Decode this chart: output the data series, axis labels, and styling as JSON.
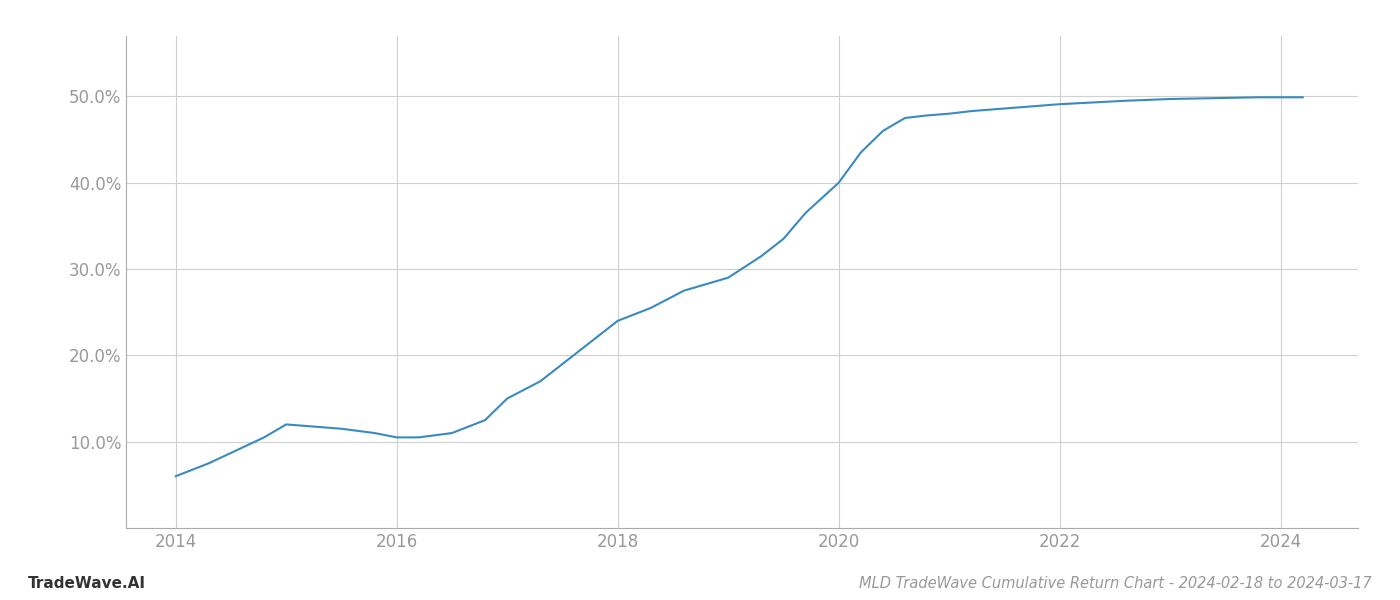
{
  "x_years": [
    2014.0,
    2014.3,
    2014.8,
    2015.0,
    2015.2,
    2015.5,
    2015.8,
    2016.0,
    2016.2,
    2016.5,
    2016.8,
    2017.0,
    2017.3,
    2017.6,
    2018.0,
    2018.3,
    2018.6,
    2019.0,
    2019.3,
    2019.5,
    2019.7,
    2020.0,
    2020.2,
    2020.4,
    2020.6,
    2020.8,
    2021.0,
    2021.2,
    2021.4,
    2021.6,
    2021.8,
    2022.0,
    2022.3,
    2022.6,
    2023.0,
    2023.4,
    2023.8,
    2024.0,
    2024.2
  ],
  "y_values": [
    6.0,
    7.5,
    10.5,
    12.0,
    11.8,
    11.5,
    11.0,
    10.5,
    10.5,
    11.0,
    12.5,
    15.0,
    17.0,
    20.0,
    24.0,
    25.5,
    27.5,
    29.0,
    31.5,
    33.5,
    36.5,
    40.0,
    43.5,
    46.0,
    47.5,
    47.8,
    48.0,
    48.3,
    48.5,
    48.7,
    48.9,
    49.1,
    49.3,
    49.5,
    49.7,
    49.8,
    49.9,
    49.9,
    49.9
  ],
  "line_color": "#3a8abf",
  "line_width": 1.5,
  "title": "MLD TradeWave Cumulative Return Chart - 2024-02-18 to 2024-03-17",
  "watermark": "TradeWave.AI",
  "xlim": [
    2013.55,
    2024.7
  ],
  "ylim": [
    0,
    57
  ],
  "yticks": [
    10.0,
    20.0,
    30.0,
    40.0,
    50.0
  ],
  "ytick_labels": [
    "10.0%",
    "20.0%",
    "30.0%",
    "40.0%",
    "50.0%"
  ],
  "xticks": [
    2014,
    2016,
    2018,
    2020,
    2022,
    2024
  ],
  "xtick_labels": [
    "2014",
    "2016",
    "2018",
    "2020",
    "2022",
    "2024"
  ],
  "background_color": "#ffffff",
  "grid_color": "#d0d0d0",
  "tick_color": "#999999",
  "title_fontsize": 10.5,
  "watermark_fontsize": 11
}
